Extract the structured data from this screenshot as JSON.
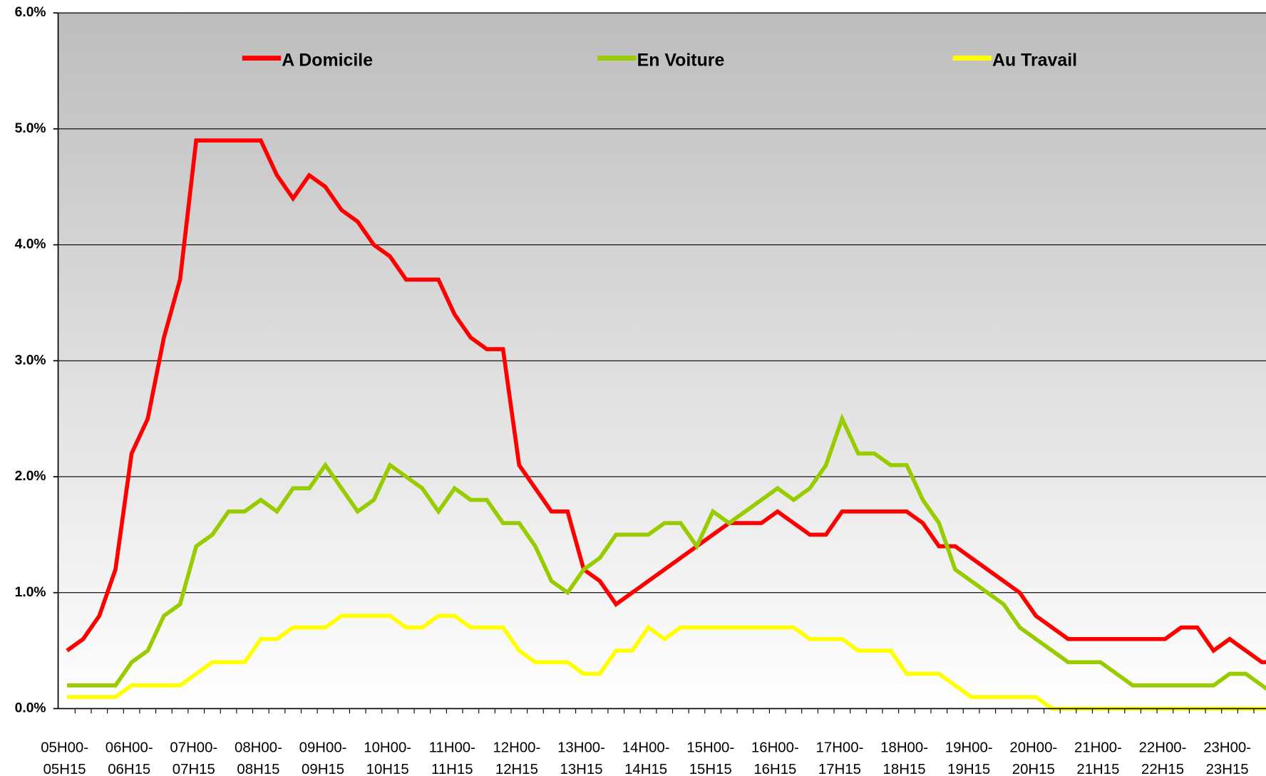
{
  "chart_data": {
    "type": "line",
    "categories": [
      "05H00-05H15",
      null,
      null,
      null,
      "06H00-06H15",
      null,
      null,
      null,
      "07H00-07H15",
      null,
      null,
      null,
      "08H00-08H15",
      null,
      null,
      null,
      "09H00-09H15",
      null,
      null,
      null,
      "10H00-10H15",
      null,
      null,
      null,
      "11H00-11H15",
      null,
      null,
      null,
      "12H00-12H15",
      null,
      null,
      null,
      "13H00-13H15",
      null,
      null,
      null,
      "14H00-14H15",
      null,
      null,
      null,
      "15H00-15H15",
      null,
      null,
      null,
      "16H00-16H15",
      null,
      null,
      null,
      "17H00-17H15",
      null,
      null,
      null,
      "18H00-18H15",
      null,
      null,
      null,
      "19H00-19H15",
      null,
      null,
      null,
      "20H00-20H15",
      null,
      null,
      null,
      "21H00-21H15",
      null,
      null,
      null,
      "22H00-22H15",
      null,
      null,
      null,
      "23H00-23H15",
      null,
      null,
      null
    ],
    "series": [
      {
        "name": "A Domicile",
        "color": "#ff0000",
        "values": [
          0.5,
          0.6,
          0.8,
          1.2,
          2.2,
          2.5,
          3.2,
          3.7,
          4.9,
          4.9,
          4.9,
          4.9,
          4.9,
          4.6,
          4.4,
          4.6,
          4.5,
          4.3,
          4.2,
          4.0,
          3.9,
          3.7,
          3.7,
          3.7,
          3.4,
          3.2,
          3.1,
          3.1,
          2.1,
          1.9,
          1.7,
          1.7,
          1.2,
          1.1,
          0.9,
          1.0,
          1.1,
          1.2,
          1.3,
          1.4,
          1.5,
          1.6,
          1.6,
          1.6,
          1.7,
          1.6,
          1.5,
          1.5,
          1.7,
          1.7,
          1.7,
          1.7,
          1.7,
          1.6,
          1.4,
          1.4,
          1.3,
          1.2,
          1.1,
          1.0,
          0.8,
          0.7,
          0.6,
          0.6,
          0.6,
          0.6,
          0.6,
          0.6,
          0.6,
          0.7,
          0.7,
          0.5,
          0.6,
          0.5,
          0.4,
          0.4
        ]
      },
      {
        "name": "En Voiture",
        "color": "#99cc00",
        "values": [
          0.2,
          0.2,
          0.2,
          0.2,
          0.4,
          0.5,
          0.8,
          0.9,
          1.4,
          1.5,
          1.7,
          1.7,
          1.8,
          1.7,
          1.9,
          1.9,
          2.1,
          1.9,
          1.7,
          1.8,
          2.1,
          2.0,
          1.9,
          1.7,
          1.9,
          1.8,
          1.8,
          1.6,
          1.6,
          1.4,
          1.1,
          1.0,
          1.2,
          1.3,
          1.5,
          1.5,
          1.5,
          1.6,
          1.6,
          1.4,
          1.7,
          1.6,
          1.7,
          1.8,
          1.9,
          1.8,
          1.9,
          2.1,
          2.5,
          2.2,
          2.2,
          2.1,
          2.1,
          1.8,
          1.6,
          1.2,
          1.1,
          1.0,
          0.9,
          0.7,
          0.6,
          0.5,
          0.4,
          0.4,
          0.4,
          0.3,
          0.2,
          0.2,
          0.2,
          0.2,
          0.2,
          0.2,
          0.3,
          0.3,
          0.2,
          0.1
        ]
      },
      {
        "name": "Au Travail",
        "color": "#ffff00",
        "values": [
          0.1,
          0.1,
          0.1,
          0.1,
          0.2,
          0.2,
          0.2,
          0.2,
          0.3,
          0.4,
          0.4,
          0.4,
          0.6,
          0.6,
          0.7,
          0.7,
          0.7,
          0.8,
          0.8,
          0.8,
          0.8,
          0.7,
          0.7,
          0.8,
          0.8,
          0.7,
          0.7,
          0.7,
          0.5,
          0.4,
          0.4,
          0.4,
          0.3,
          0.3,
          0.5,
          0.5,
          0.7,
          0.6,
          0.7,
          0.7,
          0.7,
          0.7,
          0.7,
          0.7,
          0.7,
          0.7,
          0.6,
          0.6,
          0.6,
          0.5,
          0.5,
          0.5,
          0.3,
          0.3,
          0.3,
          0.2,
          0.1,
          0.1,
          0.1,
          0.1,
          0.1,
          0,
          0,
          0,
          0,
          0,
          0,
          0,
          0,
          0,
          0,
          0,
          0,
          0,
          0,
          0
        ]
      }
    ],
    "ylim": [
      0,
      6
    ],
    "yticks": [
      {
        "value": 0,
        "label": "0.0%"
      },
      {
        "value": 1,
        "label": "1.0%"
      },
      {
        "value": 2,
        "label": "2.0%"
      },
      {
        "value": 3,
        "label": "3.0%"
      },
      {
        "value": 4,
        "label": "4.0%"
      },
      {
        "value": 5,
        "label": "5.0%"
      },
      {
        "value": 6,
        "label": "6.0%"
      }
    ],
    "grid": true,
    "legend": "top"
  }
}
